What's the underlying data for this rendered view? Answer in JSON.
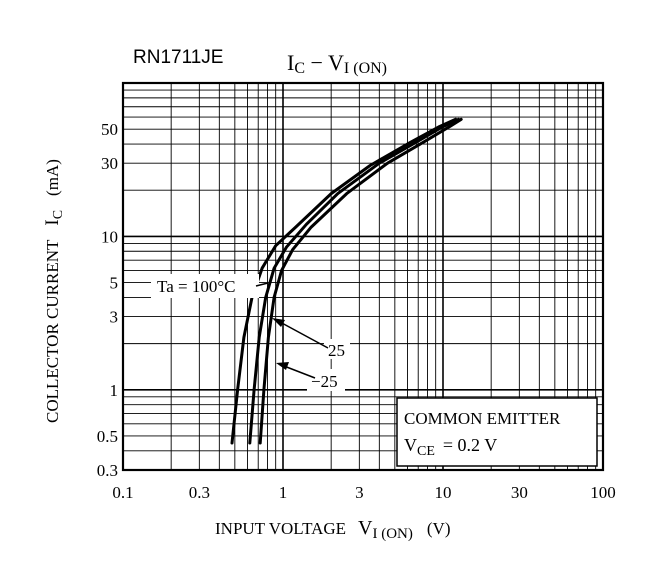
{
  "chart_data": {
    "type": "line",
    "part_number": "RN1711JE",
    "title": {
      "main": "I",
      "sub1": "C",
      "dash": " − ",
      "v": "V",
      "sub2": "I (ON)"
    },
    "xlabel": {
      "text": "INPUT VOLTAGE",
      "v": "V",
      "sub": "I (ON)",
      "unit": "(V)"
    },
    "ylabel": {
      "text": "COLLECTOR CURRENT",
      "i": "I",
      "sub": "C",
      "unit": "(mA)"
    },
    "x_scale": "log",
    "y_scale": "log",
    "xlim": [
      0.1,
      100
    ],
    "ylim": [
      0.3,
      100
    ],
    "x_ticks": [
      "0.1",
      "0.3",
      "1",
      "3",
      "10",
      "30",
      "100"
    ],
    "x_tick_values": [
      0.1,
      0.3,
      1,
      3,
      10,
      30,
      100
    ],
    "y_ticks": [
      "0.3",
      "0.5",
      "1",
      "3",
      "5",
      "10",
      "30",
      "50"
    ],
    "y_tick_values": [
      0.3,
      0.5,
      1,
      3,
      5,
      10,
      30,
      50
    ],
    "series": [
      {
        "name": "Ta = 100°C",
        "label": "Ta = 100°C",
        "points": [
          [
            0.48,
            0.45
          ],
          [
            0.52,
            1.0
          ],
          [
            0.57,
            2.2
          ],
          [
            0.64,
            4.0
          ],
          [
            0.74,
            6.2
          ],
          [
            0.9,
            8.7
          ],
          [
            1.2,
            11.5
          ],
          [
            2.0,
            19
          ],
          [
            3.5,
            29
          ],
          [
            6.0,
            40
          ],
          [
            9.5,
            52
          ],
          [
            12,
            58
          ]
        ]
      },
      {
        "name": "25",
        "label": "25",
        "points": [
          [
            0.62,
            0.45
          ],
          [
            0.66,
            1.0
          ],
          [
            0.71,
            2.2
          ],
          [
            0.78,
            4.0
          ],
          [
            0.88,
            6.2
          ],
          [
            1.05,
            8.5
          ],
          [
            1.4,
            12
          ],
          [
            2.2,
            19
          ],
          [
            4.0,
            30
          ],
          [
            6.5,
            40
          ],
          [
            10,
            52
          ],
          [
            12.5,
            58
          ]
        ]
      },
      {
        "name": "−25",
        "label": "−25",
        "points": [
          [
            0.72,
            0.45
          ],
          [
            0.76,
            1.0
          ],
          [
            0.81,
            2.2
          ],
          [
            0.88,
            4.0
          ],
          [
            0.98,
            6.0
          ],
          [
            1.15,
            8.2
          ],
          [
            1.5,
            11.5
          ],
          [
            2.5,
            19
          ],
          [
            4.5,
            30
          ],
          [
            7.5,
            41
          ],
          [
            11,
            52
          ],
          [
            13,
            58
          ]
        ]
      }
    ],
    "annotation": {
      "line1": "COMMON EMITTER",
      "line2_v": "V",
      "line2_sub": "CE",
      "line2_val": "= 0.2 V"
    },
    "grid": true
  }
}
